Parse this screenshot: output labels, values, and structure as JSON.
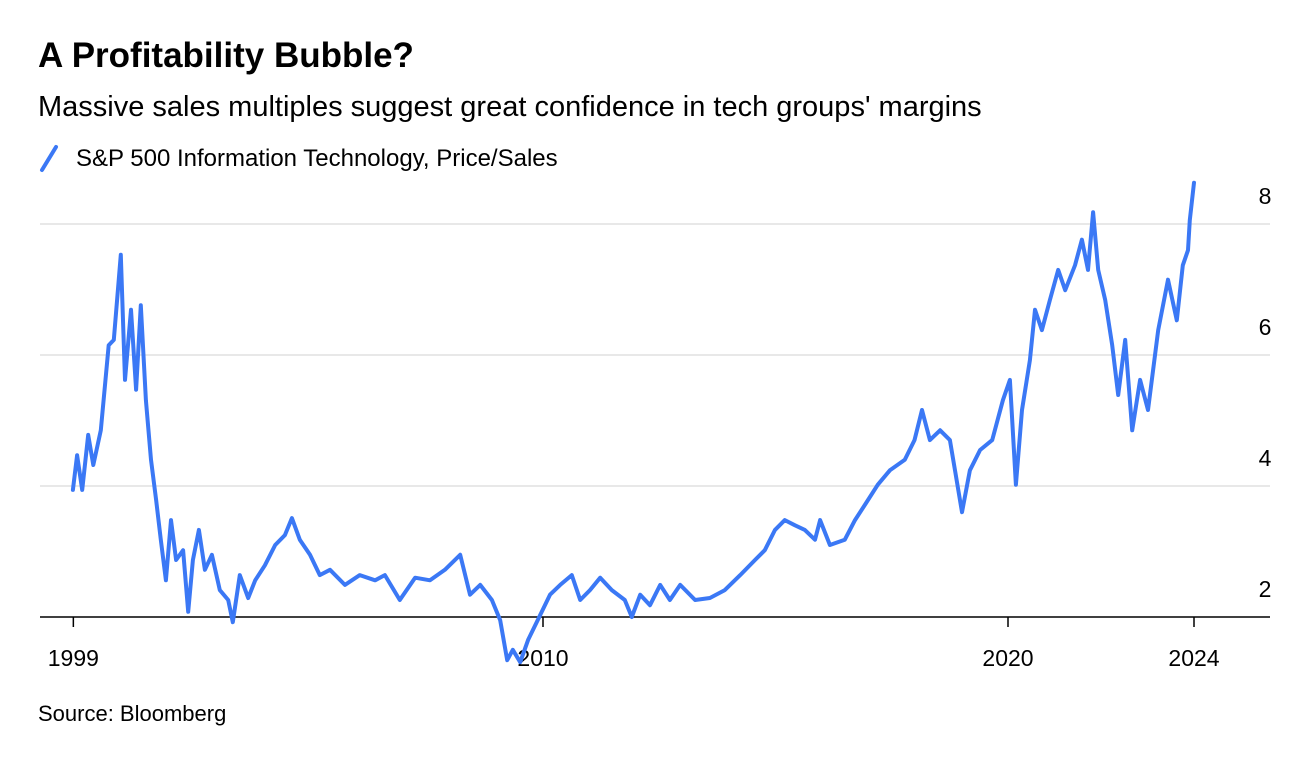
{
  "chart_data": {
    "type": "line",
    "title": "A Profitability Bubble?",
    "subtitle": "Massive sales multiples suggest great confidence in tech groups' margins",
    "source": "Source: Bloomberg",
    "x": [
      1999.89,
      1999.98,
      2000.09,
      2000.22,
      2000.33,
      2000.49,
      2000.66,
      2000.77,
      2000.92,
      2001.01,
      2001.14,
      2001.25,
      2001.35,
      2001.46,
      2001.57,
      2001.68,
      2001.78,
      2001.89,
      2002.0,
      2002.11,
      2002.26,
      2002.37,
      2002.47,
      2002.6,
      2002.73,
      2002.88,
      2003.05,
      2003.23,
      2003.33,
      2003.48,
      2003.66,
      2003.81,
      2004.02,
      2004.24,
      2004.45,
      2004.6,
      2004.77,
      2004.99,
      2005.2,
      2005.42,
      2005.74,
      2006.06,
      2006.39,
      2006.6,
      2006.92,
      2007.25,
      2007.57,
      2007.89,
      2008.22,
      2008.43,
      2008.65,
      2008.9,
      2009.08,
      2009.23,
      2009.35,
      2009.51,
      2009.68,
      2009.94,
      2010.15,
      2010.37,
      2010.62,
      2010.8,
      2011.01,
      2011.23,
      2011.48,
      2011.76,
      2011.91,
      2012.09,
      2012.3,
      2012.52,
      2012.73,
      2012.95,
      2013.27,
      2013.59,
      2013.91,
      2014.24,
      2014.56,
      2014.77,
      2014.99,
      2015.2,
      2015.42,
      2015.63,
      2015.85,
      2015.96,
      2016.17,
      2016.49,
      2016.71,
      2016.92,
      2017.2,
      2017.46,
      2017.78,
      2017.99,
      2018.15,
      2018.32,
      2018.54,
      2018.75,
      2018.86,
      2019.01,
      2019.18,
      2019.4,
      2019.66,
      2019.89,
      2020.04,
      2020.17,
      2020.3,
      2020.47,
      2020.58,
      2020.73,
      2020.9,
      2021.08,
      2021.23,
      2021.44,
      2021.59,
      2021.72,
      2021.83,
      2021.94,
      2022.09,
      2022.24,
      2022.37,
      2022.52,
      2022.67,
      2022.84,
      2023.01,
      2023.23,
      2023.44,
      2023.63,
      2023.76,
      2023.87,
      2023.91,
      2024.0
    ],
    "series": [
      {
        "name": "S&P 500 Information Technology, Price/Sales",
        "color": "#3b78f5",
        "values": [
          3.94,
          4.47,
          3.94,
          4.78,
          4.32,
          4.85,
          6.15,
          6.23,
          7.53,
          5.62,
          6.69,
          5.47,
          6.76,
          5.31,
          4.4,
          3.79,
          3.18,
          2.56,
          3.48,
          2.87,
          3.02,
          2.08,
          2.87,
          3.33,
          2.72,
          2.95,
          2.41,
          2.26,
          1.92,
          2.64,
          2.29,
          2.56,
          2.79,
          3.1,
          3.25,
          3.51,
          3.18,
          2.95,
          2.64,
          2.72,
          2.49,
          2.64,
          2.56,
          2.64,
          2.26,
          2.6,
          2.56,
          2.72,
          2.95,
          2.34,
          2.49,
          2.26,
          1.95,
          1.34,
          1.5,
          1.31,
          1.65,
          2.03,
          2.34,
          2.49,
          2.64,
          2.26,
          2.41,
          2.6,
          2.41,
          2.26,
          2.0,
          2.34,
          2.18,
          2.49,
          2.26,
          2.49,
          2.26,
          2.29,
          2.41,
          2.64,
          2.87,
          3.02,
          3.33,
          3.48,
          3.4,
          3.33,
          3.18,
          3.48,
          3.1,
          3.18,
          3.48,
          3.71,
          4.02,
          4.24,
          4.4,
          4.7,
          5.16,
          4.7,
          4.85,
          4.7,
          4.24,
          3.6,
          4.24,
          4.55,
          4.7,
          5.31,
          5.62,
          4.02,
          5.16,
          5.92,
          6.69,
          6.38,
          6.84,
          7.3,
          6.99,
          7.37,
          7.76,
          7.3,
          8.18,
          7.3,
          6.84,
          6.15,
          5.39,
          6.23,
          4.85,
          5.62,
          5.16,
          6.38,
          7.15,
          6.53,
          7.37,
          7.6,
          8.06,
          8.63
        ]
      }
    ],
    "xlim": [
      1999,
      2025.6
    ],
    "xticks": [
      {
        "value": 1999.9,
        "label": "1999"
      },
      2010,
      2020,
      2024
    ],
    "ylim": [
      1.2,
      8.8
    ],
    "yticks": [
      2,
      4,
      6,
      8
    ],
    "grid": true
  }
}
